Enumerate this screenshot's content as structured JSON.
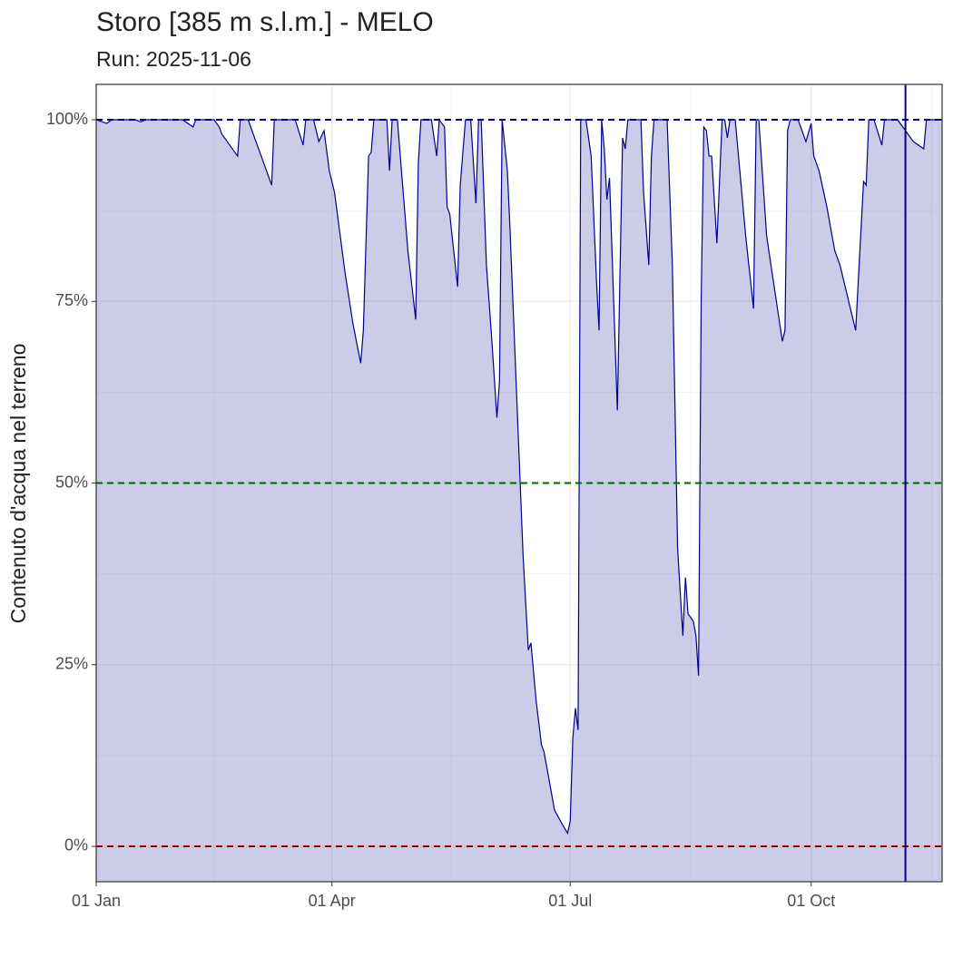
{
  "chart_data": {
    "type": "area",
    "title": "Storo [385 m s.l.m.] - MELO",
    "subtitle": "Run: 2025-11-06",
    "y_label": "Contenuto d'acqua nel terreno",
    "x": [
      "01 Jan",
      "05 Jan",
      "07 Jan",
      "16 Jan",
      "18 Jan",
      "20 Jan",
      "03 Feb",
      "07 Feb",
      "08 Feb",
      "15 Feb",
      "17 Feb",
      "18 Feb",
      "22 Feb",
      "24 Feb",
      "25 Feb",
      "28 Feb",
      "04 Mar",
      "09 Mar",
      "10 Mar",
      "18 Mar",
      "21 Mar",
      "22 Mar",
      "25 Mar",
      "27 Mar",
      "29 Mar",
      "31 Mar",
      "02 Apr",
      "06 Apr",
      "09 Apr",
      "12 Apr",
      "13 Apr",
      "15 Apr",
      "16 Apr",
      "17 Apr",
      "22 Apr",
      "23 Apr",
      "24 Apr",
      "26 Apr",
      "30 Apr",
      "03 May",
      "04 May",
      "05 May",
      "09 May",
      "11 May",
      "12 May",
      "14 May",
      "15 May",
      "16 May",
      "19 May",
      "20 May",
      "22 May",
      "24 May",
      "26 May",
      "27 May",
      "28 May",
      "30 May",
      "01 Jun",
      "03 Jun",
      "04 Jun",
      "05 Jun",
      "07 Jun",
      "08 Jun",
      "10 Jun",
      "13 Jun",
      "15 Jun",
      "16 Jun",
      "18 Jun",
      "20 Jun",
      "21 Jun",
      "23 Jun",
      "25 Jun",
      "28 Jun",
      "30 Jun",
      "01 Jul",
      "02 Jul",
      "03 Jul",
      "04 Jul",
      "05 Jul",
      "07 Jul",
      "09 Jul",
      "11 Jul",
      "12 Jul",
      "13 Jul",
      "14 Jul",
      "15 Jul",
      "16 Jul",
      "19 Jul",
      "21 Jul",
      "22 Jul",
      "23 Jul",
      "28 Jul",
      "29 Jul",
      "31 Jul",
      "01 Aug",
      "02 Aug",
      "07 Aug",
      "09 Aug",
      "11 Aug",
      "13 Aug",
      "14 Aug",
      "15 Aug",
      "17 Aug",
      "18 Aug",
      "19 Aug",
      "20 Aug",
      "21 Aug",
      "22 Aug",
      "23 Aug",
      "24 Aug",
      "26 Aug",
      "28 Aug",
      "29 Aug",
      "30 Aug",
      "31 Aug",
      "02 Sep",
      "06 Sep",
      "09 Sep",
      "10 Sep",
      "11 Sep",
      "14 Sep",
      "20 Sep",
      "21 Sep",
      "22 Sep",
      "23 Sep",
      "26 Sep",
      "29 Sep",
      "01 Oct",
      "02 Oct",
      "04 Oct",
      "07 Oct",
      "10 Oct",
      "12 Oct",
      "18 Oct",
      "21 Oct",
      "22 Oct",
      "23 Oct",
      "25 Oct",
      "28 Oct",
      "29 Oct",
      "03 Nov",
      "05 Nov",
      "07 Nov",
      "09 Nov",
      "13 Nov",
      "14 Nov",
      "20 Nov"
    ],
    "values": [
      100,
      99.5,
      100,
      100,
      99.7,
      100,
      100,
      99,
      100,
      100,
      99,
      98,
      96,
      95,
      100,
      100,
      96,
      91,
      100,
      100,
      96.5,
      100,
      100,
      97,
      98.5,
      93,
      90,
      79,
      72,
      66.5,
      71,
      95,
      95.5,
      100,
      100,
      93,
      100,
      100,
      82,
      72.5,
      94,
      100,
      100,
      95,
      100,
      99,
      88,
      87,
      77,
      91,
      100,
      100,
      88.5,
      100,
      100,
      80,
      70,
      59,
      64,
      100,
      93,
      85,
      67,
      40,
      27,
      28,
      20,
      14,
      13,
      9,
      5,
      3,
      1.8,
      3.5,
      15,
      19,
      16,
      100,
      100,
      95,
      78,
      71,
      100,
      96,
      89,
      92,
      60,
      97.5,
      96,
      100,
      100,
      90,
      80,
      95,
      100,
      100,
      80,
      41,
      29,
      37,
      32,
      31,
      29,
      23.5,
      75,
      99,
      98.5,
      95,
      95,
      83,
      100,
      100,
      97.5,
      100,
      100,
      84,
      74,
      100,
      100,
      84,
      69.5,
      71,
      98.5,
      100,
      100,
      97,
      99.5,
      95,
      93,
      88,
      82,
      80,
      71,
      91.5,
      91,
      100,
      100,
      96.5,
      100,
      100,
      99,
      98,
      97,
      96,
      100,
      100
    ],
    "color": "#00008b",
    "fill": "#ccccе8",
    "xlim": [
      "01 Jan",
      "20 Nov"
    ],
    "xticks": [
      "01 Jan",
      "01 Apr",
      "01 Jul",
      "01 Oct"
    ],
    "ylim": [
      -4.87,
      104.87
    ],
    "yticks": [
      {
        "value": 0,
        "label": "0%"
      },
      {
        "value": 25,
        "label": "25%"
      },
      {
        "value": 50,
        "label": "50%"
      },
      {
        "value": 75,
        "label": "75%"
      },
      {
        "value": 100,
        "label": "100%"
      }
    ],
    "thresholds": [
      {
        "value": 100,
        "color": "#00008b"
      },
      {
        "value": 50,
        "color": "#006400"
      },
      {
        "value": 0,
        "color": "#8b0000"
      }
    ],
    "vline": "06 Nov",
    "grid": true
  }
}
